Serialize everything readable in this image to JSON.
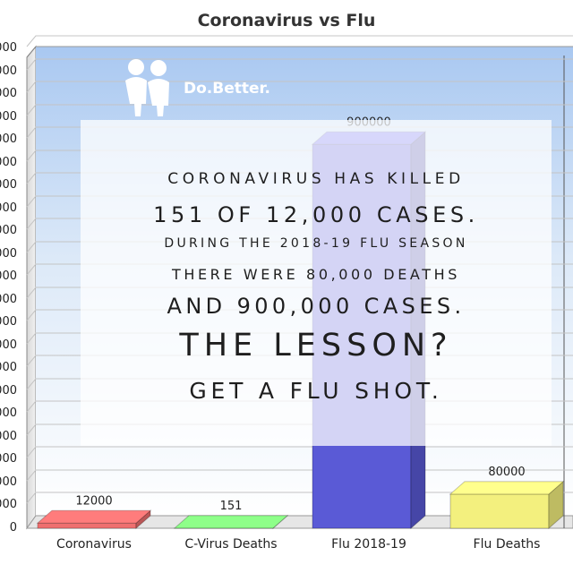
{
  "brand": {
    "name": "Do.Better."
  },
  "chart_data": {
    "type": "bar",
    "title": "Coronavirus vs Flu",
    "categories": [
      "Coronavirus",
      "C-Virus Deaths",
      "Flu 2018-19",
      "Flu Deaths"
    ],
    "values": [
      12000,
      151,
      900000,
      80000
    ],
    "data_labels": [
      "12000",
      "151",
      "900000",
      "80000"
    ],
    "colors": [
      "#ef6f6f",
      "#7fe77a",
      "#5a5ad6",
      "#f3f07e"
    ],
    "ylim": [
      0,
      1100000
    ],
    "grid": true,
    "legend": "none",
    "y_ticks_visible": [
      "000",
      "000",
      "000",
      "000",
      "000",
      "000",
      "000",
      "000",
      "000",
      "000",
      "000",
      "000",
      "000",
      "000",
      "000",
      "000",
      "000",
      "000",
      "000",
      "000",
      "000",
      "0"
    ]
  },
  "overlay": {
    "lines": [
      "Coronavirus has killed",
      "151 of 12,000 cases.",
      "During the 2018-19 flu season",
      "there were 80,000 deaths",
      "and 900,000 cases.",
      "The lesson?",
      "Get a flu shot."
    ]
  }
}
